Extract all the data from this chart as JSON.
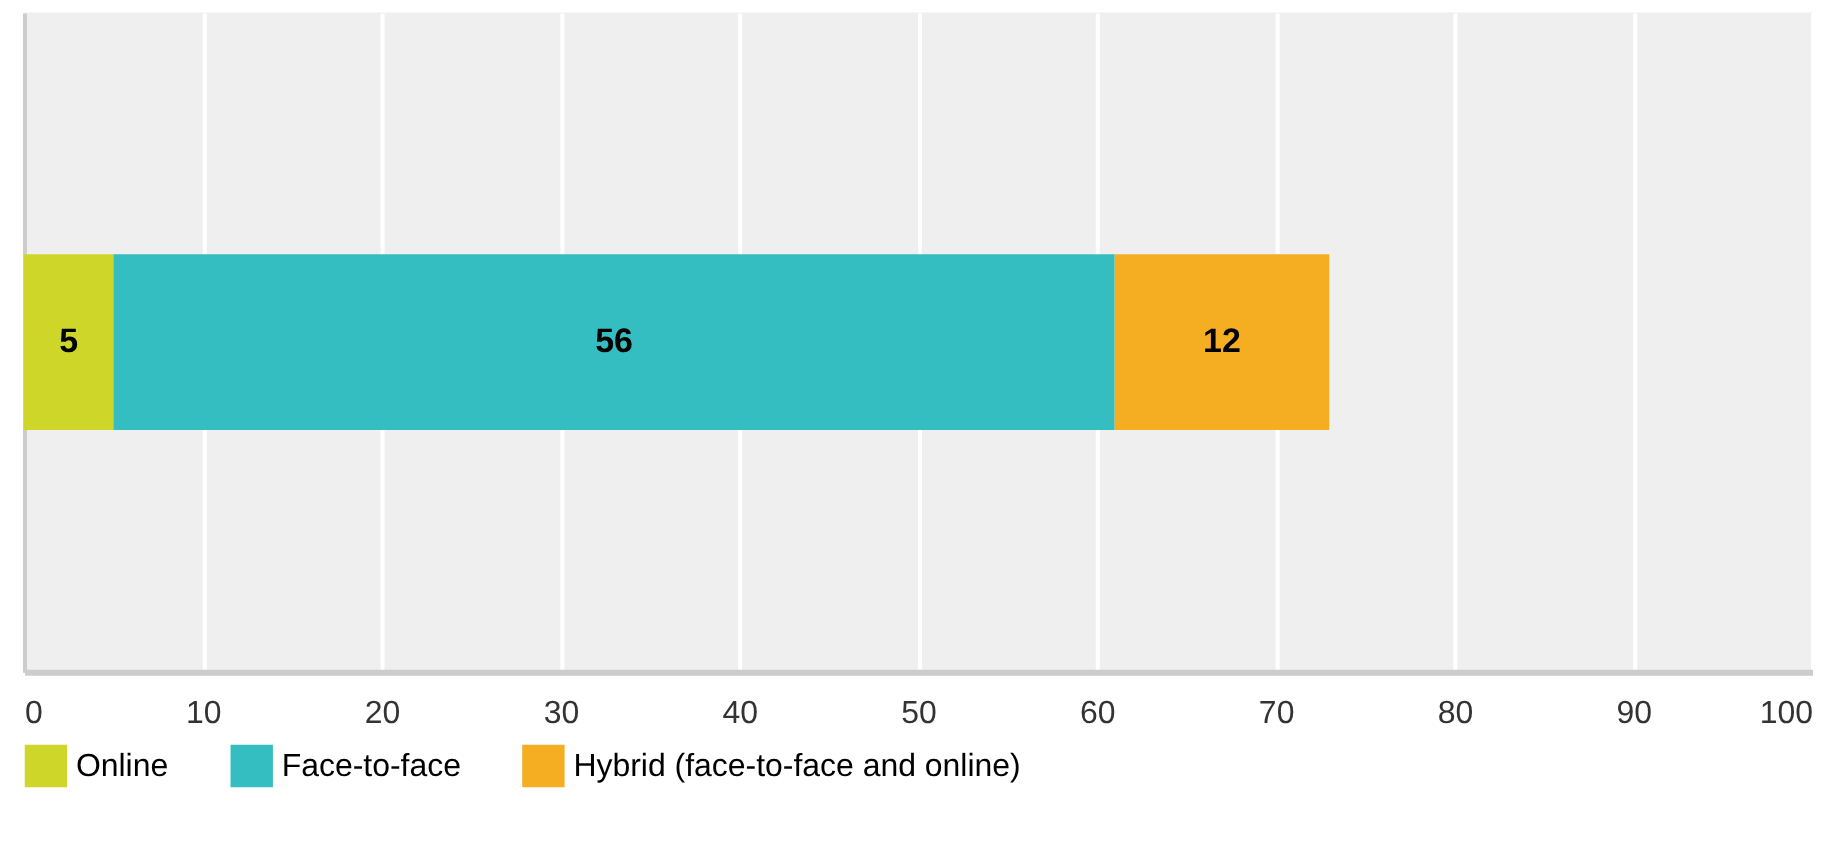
{
  "chart_data": {
    "type": "bar",
    "orientation": "horizontal",
    "stacked": true,
    "categories": [
      null
    ],
    "series": [
      {
        "name": "Online",
        "color": "#cfd62a",
        "values": [
          5
        ]
      },
      {
        "name": "Face-to-face",
        "color": "#35bec1",
        "values": [
          56
        ]
      },
      {
        "name": "Hybrid (face-to-face and online)",
        "color": "#f5ae22",
        "values": [
          12
        ]
      }
    ],
    "xlim": [
      0,
      100
    ],
    "xticks": [
      0,
      10,
      20,
      30,
      40,
      50,
      60,
      70,
      80,
      90,
      100
    ],
    "grid": "x",
    "legend": "bottom",
    "data_labels": true
  }
}
